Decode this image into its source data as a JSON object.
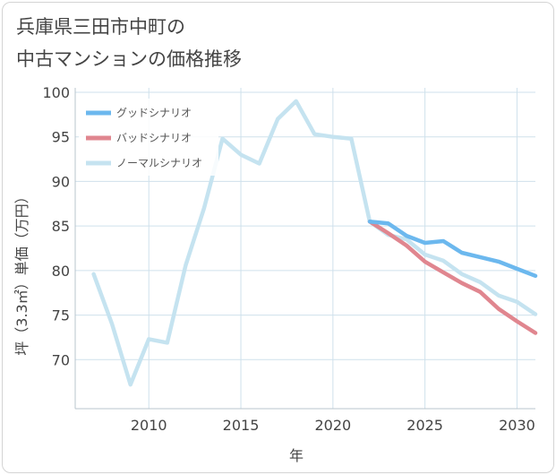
{
  "chart_data": {
    "type": "line",
    "title": [
      "兵庫県三田市中町の",
      "中古マンションの価格推移"
    ],
    "xlabel": "年",
    "ylabel": "坪（3.3㎡）単価（万円）",
    "xlim": [
      2006,
      2031
    ],
    "ylim": [
      64.5,
      100.5
    ],
    "xticks": [
      2010,
      2015,
      2020,
      2025,
      2030
    ],
    "yticks": [
      70,
      75,
      80,
      85,
      90,
      95,
      100
    ],
    "legend_position": "top-left",
    "series": [
      {
        "name": "グッドシナリオ",
        "color": "#6cb8ee",
        "x": [
          2022,
          2023,
          2024,
          2025,
          2026,
          2027,
          2028,
          2029,
          2030,
          2031
        ],
        "values": [
          85.5,
          85.3,
          83.9,
          83.1,
          83.3,
          82.0,
          81.5,
          81.0,
          80.2,
          79.4
        ]
      },
      {
        "name": "バッドシナリオ",
        "color": "#e0868f",
        "x": [
          2022,
          2023,
          2024,
          2025,
          2026,
          2027,
          2028,
          2029,
          2030,
          2031
        ],
        "values": [
          85.5,
          84.2,
          82.8,
          81.0,
          79.8,
          78.6,
          77.6,
          75.7,
          74.3,
          73.0
        ]
      },
      {
        "name": "ノーマルシナリオ",
        "color": "#c5e3f0",
        "x": [
          2007,
          2008,
          2009,
          2010,
          2011,
          2012,
          2013,
          2014,
          2015,
          2016,
          2017,
          2018,
          2019,
          2020,
          2021,
          2022,
          2023,
          2024,
          2025,
          2026,
          2027,
          2028,
          2029,
          2030,
          2031
        ],
        "values": [
          79.6,
          74.0,
          67.2,
          72.3,
          71.9,
          80.6,
          87.0,
          94.8,
          93.0,
          92.0,
          97.0,
          99.0,
          95.3,
          95.0,
          94.8,
          85.5,
          84.0,
          83.5,
          81.8,
          81.1,
          79.6,
          78.7,
          77.2,
          76.5,
          75.1
        ]
      }
    ]
  }
}
